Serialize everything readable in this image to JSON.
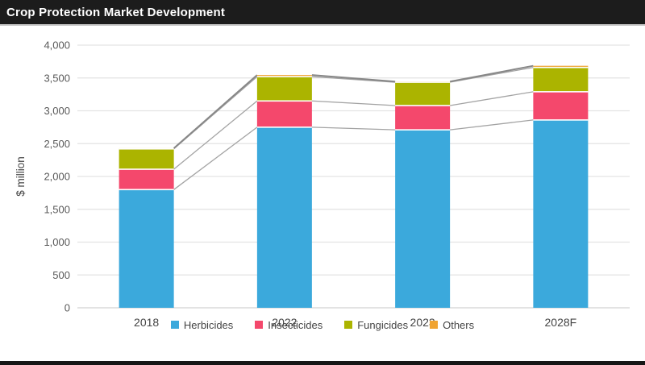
{
  "header": {
    "title": "Crop Protection Market Development"
  },
  "colors": {
    "header_bg": "#1c1c1c",
    "title_text": "#ffffff",
    "background": "#ffffff",
    "grid": "#e3e3e3",
    "axis_line": "#d2d2d2",
    "tick_text": "#595959",
    "label_text": "#444444",
    "connector": "#a3a3a3",
    "connector_top": "#878787",
    "separator": "#ffffff",
    "footer_bar": "#161616"
  },
  "chart_data": {
    "type": "bar",
    "stacked": true,
    "title": "Crop Protection Market Development",
    "categories": [
      "2018",
      "2022",
      "2023",
      "2028F"
    ],
    "series": [
      {
        "name": "Herbicides",
        "color": "#3ba9dc",
        "values": [
          1800,
          2750,
          2710,
          2860
        ]
      },
      {
        "name": "Insecticides",
        "color": "#f4486c",
        "values": [
          310,
          400,
          370,
          430
        ]
      },
      {
        "name": "Fungicides",
        "color": "#abb400",
        "values": [
          310,
          370,
          355,
          370
        ]
      },
      {
        "name": "Others",
        "color": "#f0a432",
        "values": [
          10,
          25,
          10,
          25
        ]
      }
    ],
    "totals": [
      2430,
      3545,
      3445,
      3685
    ],
    "xlabel": "",
    "ylabel": "$ million",
    "ylim": [
      0,
      4000
    ],
    "ytick_step": 500,
    "ytick_labels": [
      "0",
      "500",
      "1,000",
      "1,500",
      "2,000",
      "2,500",
      "3,000",
      "3,500",
      "4,000"
    ],
    "grid": true,
    "series_lines": true,
    "legend_position": "bottom"
  }
}
